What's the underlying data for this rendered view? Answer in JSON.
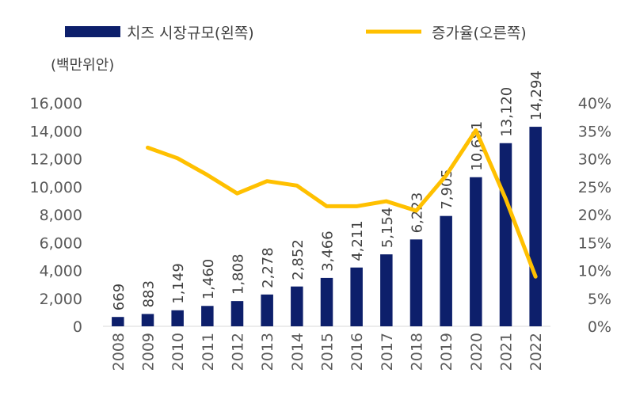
{
  "chart_data": {
    "type": "bar",
    "categories": [
      "2008",
      "2009",
      "2010",
      "2011",
      "2012",
      "2013",
      "2014",
      "2015",
      "2016",
      "2017",
      "2018",
      "2019",
      "2020",
      "2021",
      "2022"
    ],
    "series": [
      {
        "name": "치즈 시장규모(왼쪽)",
        "type": "bar",
        "axis": "left",
        "color": "#0d1f6b",
        "values": [
          669,
          883,
          1149,
          1460,
          1808,
          2278,
          2852,
          3466,
          4211,
          5154,
          6223,
          7905,
          10681,
          13120,
          14294
        ],
        "labels": [
          "669",
          "883",
          "1,149",
          "1,460",
          "1,808",
          "2,278",
          "2,852",
          "3,466",
          "4,211",
          "5,154",
          "6,223",
          "7,905",
          "10,681",
          "13,120",
          "14,294"
        ]
      },
      {
        "name": "증가율(오른쪽)",
        "type": "line",
        "axis": "right",
        "color": "#ffc000",
        "values": [
          null,
          32.0,
          30.1,
          27.1,
          23.8,
          26.0,
          25.2,
          21.5,
          21.5,
          22.4,
          20.7,
          27.0,
          35.1,
          22.8,
          8.9
        ]
      }
    ],
    "y_left": {
      "unit_label": "(백만위안)",
      "range": [
        0,
        16000
      ],
      "ticks": [
        "0",
        "2,000",
        "4,000",
        "6,000",
        "8,000",
        "10,000",
        "12,000",
        "14,000",
        "16,000"
      ]
    },
    "y_right": {
      "range": [
        0,
        40
      ],
      "ticks": [
        "0%",
        "5%",
        "10%",
        "15%",
        "20%",
        "25%",
        "30%",
        "35%",
        "40%"
      ]
    },
    "legend_position": "top",
    "grid": false
  }
}
